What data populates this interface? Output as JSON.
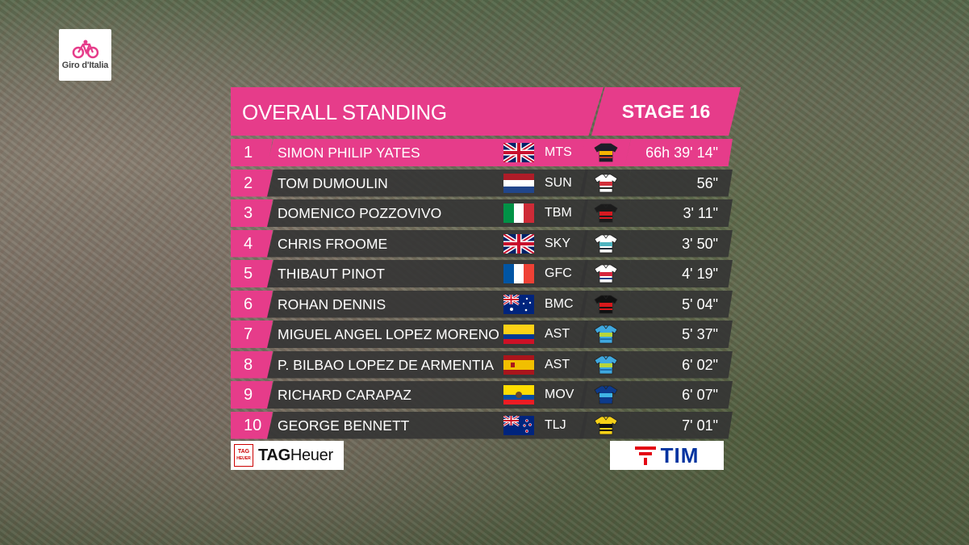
{
  "broadcast": {
    "logo_text": "Giro d'Italia",
    "title": "OVERALL STANDING",
    "stage": "STAGE 16",
    "accent_color": "#e63c8a"
  },
  "standings": [
    {
      "pos": "1",
      "name": "SIMON PHILIP YATES",
      "flag": "gb",
      "team": "MTS",
      "jersey": "mts",
      "time": "66h 39' 14\""
    },
    {
      "pos": "2",
      "name": "TOM DUMOULIN",
      "flag": "nl",
      "team": "SUN",
      "jersey": "sun",
      "time": "56\""
    },
    {
      "pos": "3",
      "name": "DOMENICO POZZOVIVO",
      "flag": "it",
      "team": "TBM",
      "jersey": "tbm",
      "time": "3' 11\""
    },
    {
      "pos": "4",
      "name": "CHRIS FROOME",
      "flag": "gb",
      "team": "SKY",
      "jersey": "sky",
      "time": "3' 50\""
    },
    {
      "pos": "5",
      "name": "THIBAUT PINOT",
      "flag": "fr",
      "team": "GFC",
      "jersey": "gfc",
      "time": "4' 19\""
    },
    {
      "pos": "6",
      "name": "ROHAN DENNIS",
      "flag": "au",
      "team": "BMC",
      "jersey": "bmc",
      "time": "5' 04\""
    },
    {
      "pos": "7",
      "name": "MIGUEL ANGEL LOPEZ MORENO",
      "flag": "co",
      "team": "AST",
      "jersey": "ast",
      "time": "5' 37\""
    },
    {
      "pos": "8",
      "name": "P. BILBAO LOPEZ DE ARMENTIA",
      "flag": "es",
      "team": "AST",
      "jersey": "ast",
      "time": "6' 02\""
    },
    {
      "pos": "9",
      "name": "RICHARD CARAPAZ",
      "flag": "ec",
      "team": "MOV",
      "jersey": "mov",
      "time": "6' 07\""
    },
    {
      "pos": "10",
      "name": "GEORGE BENNETT",
      "flag": "nz",
      "team": "TLJ",
      "jersey": "tlj",
      "time": "7' 01\""
    }
  ],
  "sponsors": {
    "left": {
      "shield_top": "TAG",
      "shield_bottom": "HEUER",
      "word_a": "TAG",
      "word_b": "Heuer"
    },
    "right": {
      "word": "TIM"
    }
  }
}
